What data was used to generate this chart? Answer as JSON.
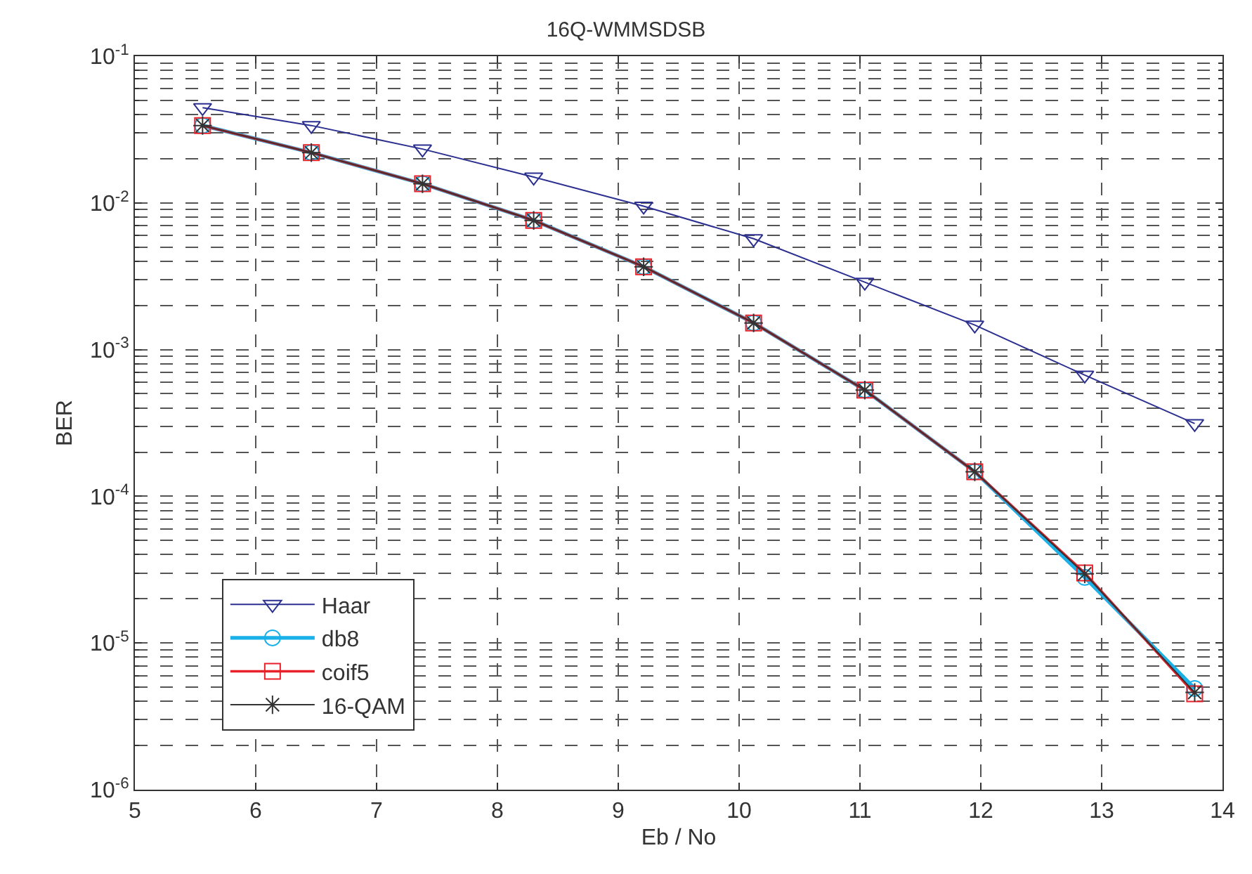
{
  "chart_data": {
    "type": "line",
    "title": "16Q-WMMSDSB",
    "xlabel": "Eb / No",
    "ylabel": "BER",
    "x": [
      5.56,
      6.46,
      7.38,
      8.3,
      9.21,
      10.12,
      11.04,
      11.95,
      12.86,
      13.77
    ],
    "series": [
      {
        "name": "Haar",
        "color": "#2b2f8f",
        "marker": "triangle",
        "values": [
          0.0446,
          0.0337,
          0.0233,
          0.015,
          0.0095,
          0.0057,
          0.00288,
          0.00147,
          0.00067,
          0.000313
        ]
      },
      {
        "name": "db8",
        "color": "#1ab0e8",
        "marker": "circle",
        "values": [
          0.0337,
          0.022,
          0.0135,
          0.0076,
          0.00367,
          0.00152,
          0.00053,
          0.000147,
          2.8e-05,
          4.9e-06
        ]
      },
      {
        "name": "coif5",
        "color": "#e8202a",
        "marker": "square",
        "values": [
          0.0337,
          0.022,
          0.0135,
          0.0076,
          0.00367,
          0.00152,
          0.00053,
          0.000147,
          3e-05,
          4.5e-06
        ]
      },
      {
        "name": "16-QAM",
        "color": "#333333",
        "marker": "cross",
        "values": [
          0.0337,
          0.022,
          0.0135,
          0.0076,
          0.00367,
          0.00152,
          0.00053,
          0.000147,
          2.96e-05,
          4.6e-06
        ]
      }
    ],
    "log": "y",
    "grid": true,
    "legend": "bottom left",
    "line_style": "solid",
    "xlim": [
      5,
      14
    ],
    "xticks": [
      5,
      6,
      7,
      8,
      9,
      10,
      11,
      12,
      13,
      14
    ],
    "ylim": [
      1e-06,
      0.1
    ],
    "yticks": [
      {
        "value": 1e-06,
        "label": "10$^{-6}$"
      },
      {
        "value": 1e-05,
        "label": "10$^{-5}$"
      },
      {
        "value": 0.0001,
        "label": "10$^{-4}$"
      },
      {
        "value": 0.001,
        "label": "10$^{-3}$"
      },
      {
        "value": 0.01,
        "label": "10$^{-2}$"
      },
      {
        "value": 0.1,
        "label": "10$^{-1}$"
      }
    ]
  }
}
